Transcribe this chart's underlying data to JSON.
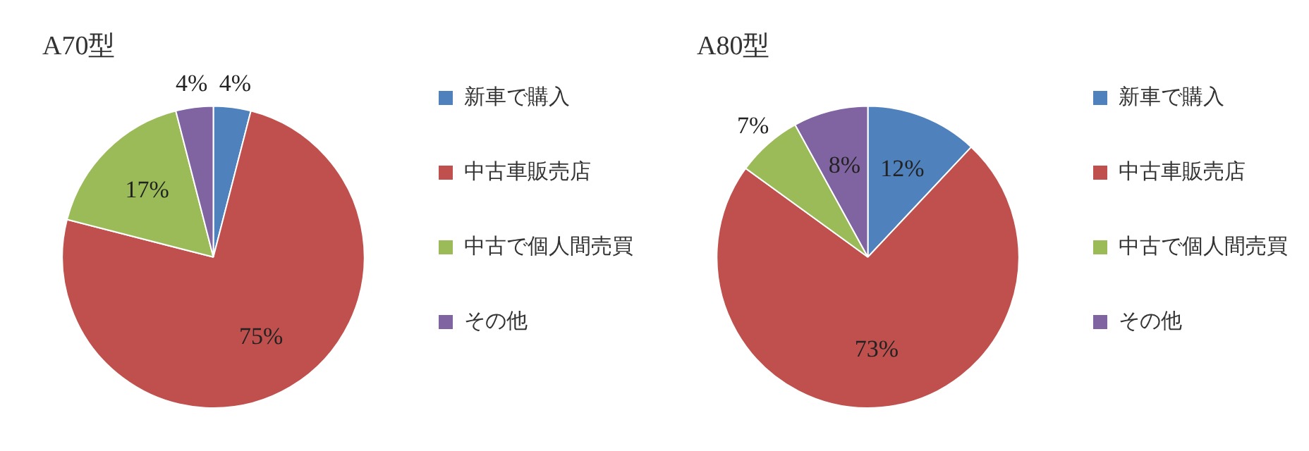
{
  "chart_data": [
    {
      "type": "pie",
      "title": "A70型",
      "categories": [
        "新車で購入",
        "中古車販売店",
        "中古で個人間売買",
        "その他"
      ],
      "values": [
        4,
        75,
        17,
        4
      ],
      "value_labels": [
        "4%",
        "75%",
        "17%",
        "4%"
      ],
      "colors": [
        "#4f81bd",
        "#c0504d",
        "#9bbb59",
        "#8064a2"
      ],
      "legend": "right"
    },
    {
      "type": "pie",
      "title": "A80型",
      "categories": [
        "新車で購入",
        "中古車販売店",
        "中古で個人間売買",
        "その他"
      ],
      "values": [
        12,
        73,
        7,
        8
      ],
      "value_labels": [
        "12%",
        "73%",
        "7%",
        "8%"
      ],
      "colors": [
        "#4f81bd",
        "#c0504d",
        "#9bbb59",
        "#8064a2"
      ],
      "legend": "right"
    }
  ]
}
